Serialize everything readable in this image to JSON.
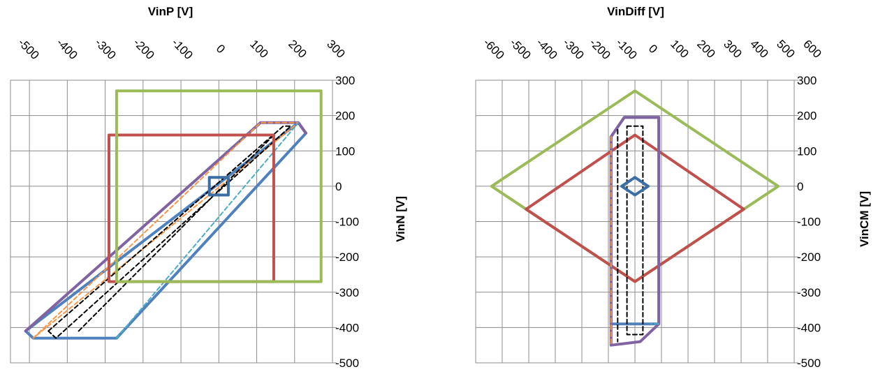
{
  "chart_data": [
    {
      "type": "line",
      "title": "",
      "xlabel": "VinP [V]",
      "ylabel": "VinN [V]",
      "x_ticks": [
        "-500",
        "-400",
        "-300",
        "-200",
        "-100",
        "0",
        "100",
        "200",
        "300"
      ],
      "y_ticks": [
        "300",
        "200",
        "100",
        "0",
        "-100",
        "-200",
        "-300",
        "-400",
        "-500"
      ],
      "xlim": [
        -550,
        300
      ],
      "ylim": [
        -500,
        300
      ],
      "grid": true,
      "series": [
        {
          "color": "#4F81BD",
          "style": "solid",
          "width": 4,
          "points": [
            [
              -270,
              -430
            ],
            [
              230,
              150
            ],
            [
              210,
              180
            ],
            [
              -510,
              -410
            ],
            [
              -490,
              -430
            ],
            [
              -270,
              -430
            ]
          ]
        },
        {
          "color": "#8064A2",
          "style": "solid",
          "width": 4,
          "points": [
            [
              -510,
              -410
            ],
            [
              110,
              180
            ],
            [
              210,
              180
            ],
            [
              230,
              150
            ]
          ]
        },
        {
          "color": "#F79646",
          "style": "dashed",
          "width": 2,
          "points": [
            [
              -490,
              -430
            ],
            [
              110,
              180
            ],
            [
              210,
              180
            ],
            [
              -490,
              -430
            ]
          ]
        },
        {
          "color": "#4BACC6",
          "style": "dashed",
          "width": 2,
          "points": [
            [
              -270,
              -430
            ],
            [
              210,
              180
            ]
          ]
        },
        {
          "color": "#000000",
          "style": "dashed",
          "width": 2,
          "points": [
            [
              -450,
              -410
            ],
            [
              170,
              170
            ],
            [
              190,
              170
            ],
            [
              -430,
              -430
            ],
            [
              -450,
              -410
            ]
          ]
        },
        {
          "color": "#000000",
          "style": "dashed",
          "width": 2,
          "points": [
            [
              -370,
              -410
            ],
            [
              150,
              150
            ]
          ]
        },
        {
          "color": "#C0504D",
          "style": "solid",
          "width": 4,
          "points": [
            [
              -290,
              -270
            ],
            [
              -290,
              145
            ],
            [
              145,
              145
            ],
            [
              145,
              -270
            ],
            [
              -290,
              -270
            ]
          ]
        },
        {
          "color": "#9BBB59",
          "style": "solid",
          "width": 4,
          "points": [
            [
              -270,
              -270
            ],
            [
              -270,
              270
            ],
            [
              270,
              270
            ],
            [
              270,
              -270
            ],
            [
              -270,
              -270
            ]
          ]
        },
        {
          "color": "#3A6EA5",
          "style": "solid",
          "width": 4,
          "points": [
            [
              -25,
              -25
            ],
            [
              -25,
              25
            ],
            [
              25,
              25
            ],
            [
              25,
              -25
            ],
            [
              -25,
              -25
            ]
          ]
        }
      ]
    },
    {
      "type": "line",
      "title": "",
      "xlabel": "VinDiff [V]",
      "ylabel": "VinCM [V]",
      "x_ticks": [
        "-600",
        "-500",
        "-400",
        "-300",
        "-200",
        "-100",
        "0",
        "100",
        "200",
        "300",
        "400",
        "500",
        "600"
      ],
      "y_ticks": [
        "300",
        "200",
        "100",
        "0",
        "-100",
        "-200",
        "-300",
        "-400",
        "-500"
      ],
      "xlim": [
        -600,
        600
      ],
      "ylim": [
        -500,
        300
      ],
      "grid": true,
      "series": [
        {
          "color": "#9BBB59",
          "style": "solid",
          "width": 4,
          "points": [
            [
              -540,
              0
            ],
            [
              0,
              270
            ],
            [
              540,
              0
            ],
            [
              0,
              -270
            ],
            [
              -540,
              0
            ]
          ]
        },
        {
          "color": "#C0504D",
          "style": "solid",
          "width": 4,
          "points": [
            [
              -410,
              -65
            ],
            [
              0,
              145
            ],
            [
              410,
              -65
            ],
            [
              0,
              -270
            ],
            [
              -410,
              -65
            ]
          ]
        },
        {
          "color": "#4F81BD",
          "style": "solid",
          "width": 4,
          "points": [
            [
              -90,
              140
            ],
            [
              -40,
              195
            ],
            [
              90,
              195
            ],
            [
              90,
              -390
            ],
            [
              -90,
              -390
            ],
            [
              -90,
              140
            ]
          ]
        },
        {
          "color": "#8064A2",
          "style": "solid",
          "width": 4,
          "points": [
            [
              -90,
              140
            ],
            [
              -40,
              195
            ],
            [
              90,
              195
            ],
            [
              90,
              -390
            ],
            [
              20,
              -440
            ],
            [
              -90,
              -450
            ],
            [
              -90,
              140
            ]
          ]
        },
        {
          "color": "#F79646",
          "style": "dashed",
          "width": 2,
          "points": [
            [
              -90,
              140
            ],
            [
              -90,
              -450
            ]
          ]
        },
        {
          "color": "#4BACC6",
          "style": "dashed",
          "width": 2,
          "points": [
            [
              90,
              -390
            ],
            [
              60,
              -390
            ]
          ]
        },
        {
          "color": "#000000",
          "style": "dashed",
          "width": 2,
          "points": [
            [
              -30,
              170
            ],
            [
              30,
              170
            ],
            [
              30,
              -420
            ],
            [
              -30,
              -420
            ],
            [
              -30,
              170
            ]
          ]
        },
        {
          "color": "#000000",
          "style": "dashed",
          "width": 2,
          "points": [
            [
              -65,
              160
            ],
            [
              -65,
              -440
            ]
          ]
        },
        {
          "color": "#3A6EA5",
          "style": "solid",
          "width": 4,
          "points": [
            [
              -50,
              0
            ],
            [
              0,
              25
            ],
            [
              50,
              0
            ],
            [
              0,
              -25
            ],
            [
              -50,
              0
            ]
          ]
        }
      ]
    }
  ]
}
